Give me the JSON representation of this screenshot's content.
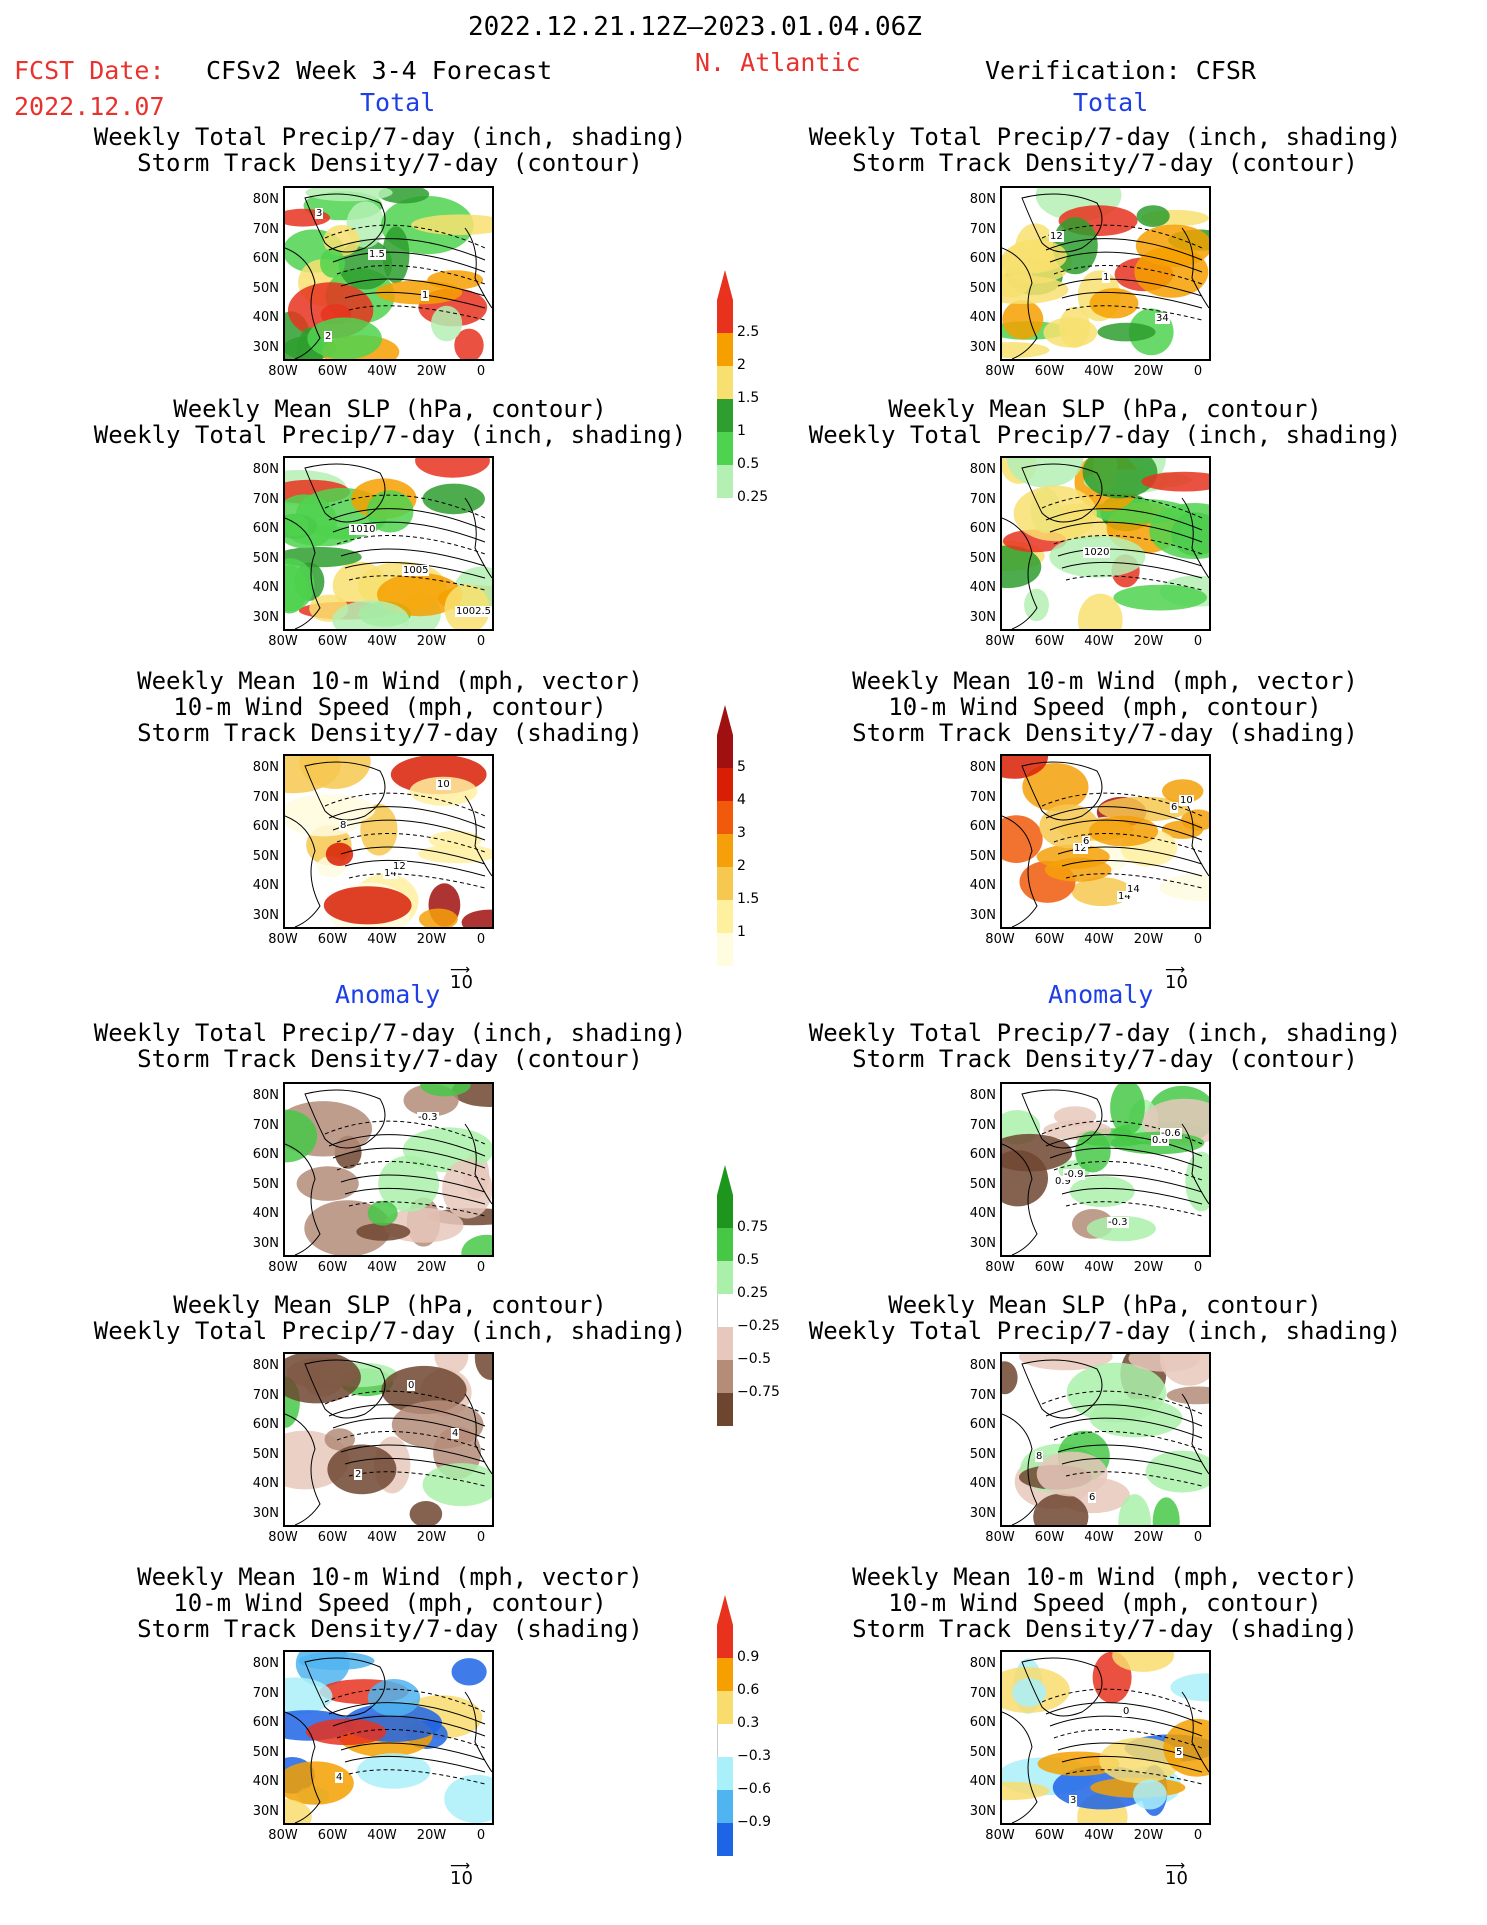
{
  "header": {
    "date_range": "2022.12.21.12Z–2023.01.04.06Z",
    "fcst_label": "FCST Date:",
    "fcst_date": "2022.12.07",
    "model": "CFSv2 Week 3-4 Forecast",
    "region": "N. Atlantic",
    "verification": "Verification: CFSR"
  },
  "sections": {
    "total": "Total",
    "anomaly": "Anomaly"
  },
  "titles": {
    "p1": [
      "Weekly Total Precip/7-day (inch, shading)",
      "Storm Track Density/7-day (contour)"
    ],
    "p2": [
      "Weekly Mean SLP (hPa, contour)",
      "Weekly Total Precip/7-day (inch, shading)"
    ],
    "p3": [
      "Weekly Mean 10-m Wind (mph, vector)",
      "10-m Wind Speed (mph, contour)",
      "Storm Track Density/7-day (shading)"
    ]
  },
  "axes": {
    "lat_ticks": [
      "80N",
      "70N",
      "60N",
      "50N",
      "40N",
      "30N"
    ],
    "lon_ticks": [
      "80W",
      "60W",
      "40W",
      "20W",
      "0"
    ]
  },
  "vector_ref": "10",
  "colorbars": {
    "precip_total": {
      "labels": [
        "2.5",
        "2",
        "1.5",
        "1",
        "0.5",
        "0.25"
      ],
      "colors": [
        "#e8321e",
        "#f6a000",
        "#f8e070",
        "#2e9e2e",
        "#4fd24f",
        "#b4f0b4"
      ]
    },
    "storm_total": {
      "labels": [
        "5",
        "4",
        "3",
        "2",
        "1.5",
        "1"
      ],
      "colors": [
        "#a01010",
        "#d81e05",
        "#f05a0a",
        "#f5a00a",
        "#f7c850",
        "#fff0a0",
        "#fffce0"
      ]
    },
    "precip_anom": {
      "labels": [
        "0.75",
        "0.5",
        "0.25",
        "−0.25",
        "−0.5",
        "−0.75"
      ],
      "colors": [
        "#1e961e",
        "#46c846",
        "#aaf0aa",
        "#ffffff",
        "#e8c8bc",
        "#b48c78",
        "#6e4630"
      ]
    },
    "storm_anom": {
      "labels": [
        "0.9",
        "0.6",
        "0.3",
        "−0.3",
        "−0.6",
        "−0.9"
      ],
      "colors": [
        "#e8321e",
        "#f5a000",
        "#f8dc6e",
        "#ffffff",
        "#aaf0fa",
        "#50b4f0",
        "#1e64e6"
      ]
    }
  },
  "contour_labels": {
    "fc_total_p1": [
      "3",
      "1.5",
      "1",
      "2"
    ],
    "fc_total_p2": [
      "1010",
      "1005",
      "1002.5"
    ],
    "fc_total_p3": [
      "14",
      "10",
      "8",
      "12"
    ],
    "ob_total_p1": [
      "12",
      "1",
      "34"
    ],
    "ob_total_p2": [
      "1020"
    ],
    "ob_total_p3": [
      "14",
      "6",
      "12",
      "14",
      "10",
      "6"
    ],
    "fc_anom_p1": [
      "-0.3"
    ],
    "fc_anom_p2": [
      "4",
      "2",
      "0"
    ],
    "fc_anom_p3": [
      "4"
    ],
    "ob_anom_p1": [
      "0.6",
      "0.9",
      "-0.3",
      "-0.6",
      "-0.9"
    ],
    "ob_anom_p2": [
      "8",
      "6"
    ],
    "ob_anom_p3": [
      "3",
      "0",
      "5"
    ]
  }
}
